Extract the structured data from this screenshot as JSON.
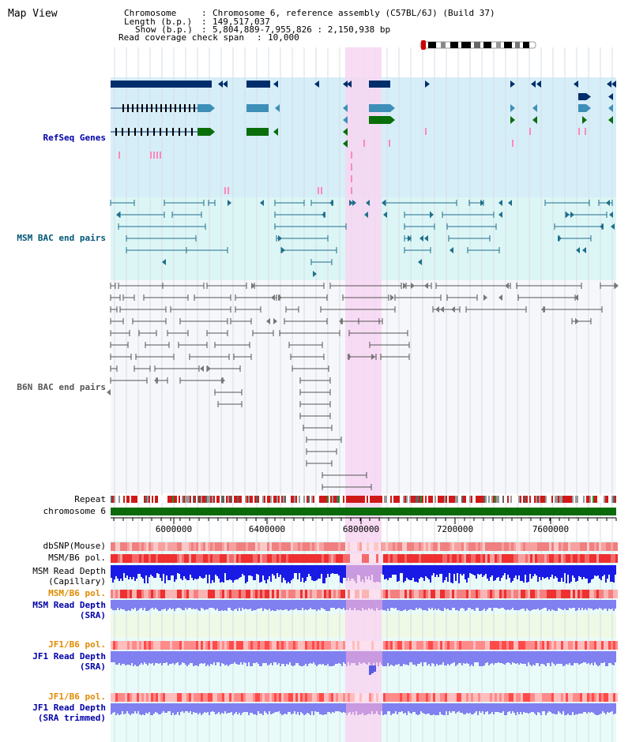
{
  "view": {
    "title": "Map View"
  },
  "info": {
    "chromosome_key": "Chromosome",
    "chromosome_val": "Chromosome 6, reference assembly (C57BL/6J) (Build 37)",
    "length_key": "Length (b.p.)",
    "length_val": "149,517,037",
    "show_key": "Show (b.p.)",
    "show_val": "5,804,889-7,955,826 : 2,150,938 bp",
    "span_key": "Read coverage check span",
    "span_val": "10,000"
  },
  "tracks": {
    "refseq": "RefSeq Genes",
    "msm_bac": "MSM BAC end pairs",
    "b6n_bac": "B6N BAC end pairs",
    "repeat": "Repeat",
    "chromosome": "chromosome 6",
    "dbsnp": "dbSNP(Mouse)",
    "msm_pol": "MSM/B6 pol.",
    "msm_depth_cap_1": "MSM Read Depth",
    "msm_depth_cap_2": "(Capillary)",
    "msm_pol_sra": "MSM/B6 pol.",
    "msm_depth_sra_1": "MSM Read Depth",
    "msm_depth_sra_2": "(SRA)",
    "jf1_pol": "JF1/B6 pol.",
    "jf1_depth_1": "JF1 Read Depth",
    "jf1_depth_2": "(SRA)",
    "jf1_pol_trim": "JF1/B6 pol.",
    "jf1_trim_1": "JF1 Read Depth",
    "jf1_trim_2": "(SRA trimmed)"
  },
  "axis": {
    "ticks": [
      "6000000",
      "6400000",
      "6800000",
      "7200000",
      "7600000"
    ]
  },
  "colors": {
    "highlight": "#f7d6f2",
    "refseq_bg": "#d6eef8",
    "msm_bg": "#dcf6f6",
    "gene_dark": "#002e6b",
    "gene_mid": "#3e8fb8",
    "gene_green": "#0a6e0a",
    "chromosome": "#0b6b0b",
    "depth_blue": "#1a1ae6",
    "depth_light": "#8080f0",
    "label_blue": "#0000aa",
    "label_teal": "#005577",
    "label_orange": "#e08a00"
  }
}
